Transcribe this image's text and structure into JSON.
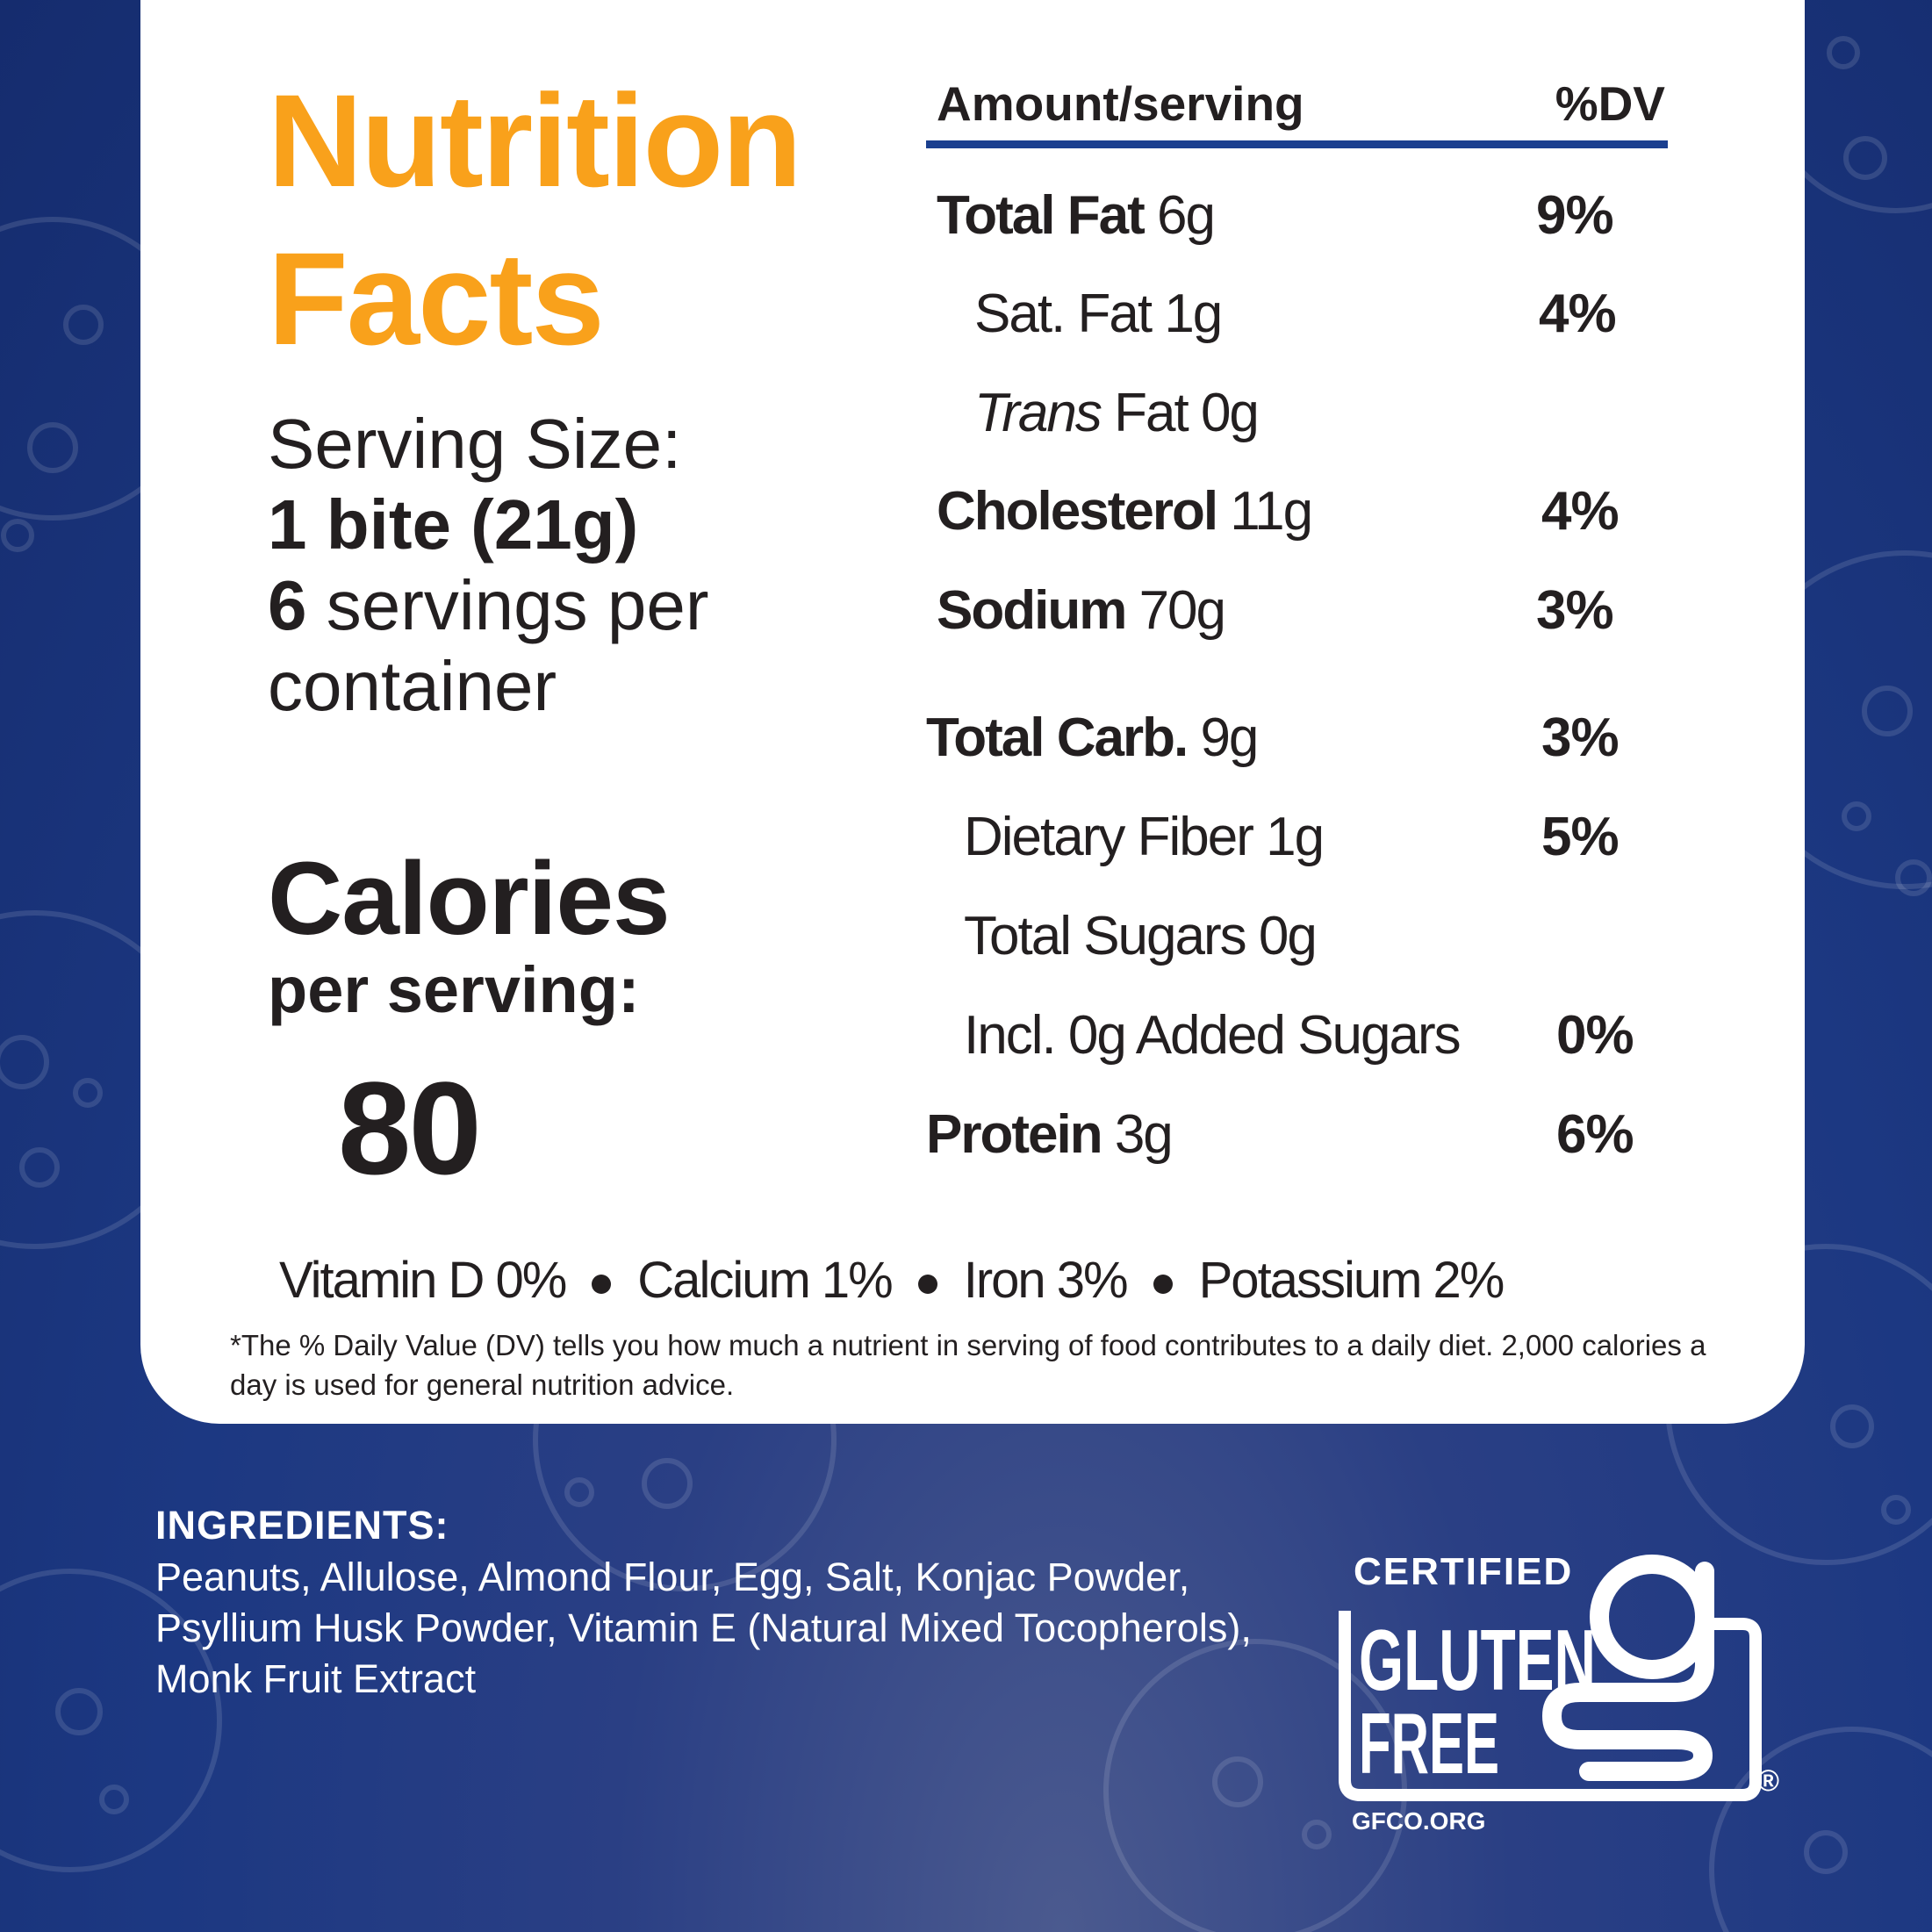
{
  "title": {
    "line1": "Nutrition",
    "line2": "Facts"
  },
  "serving": {
    "label": "Serving Size:",
    "size": "1 bite (21g)",
    "count": "6",
    "count_suffix": " servings per",
    "count_suffix2": "container"
  },
  "calories": {
    "label": "Calories",
    "sublabel": "per serving:",
    "value": "80"
  },
  "table": {
    "header_amount": "Amount/serving",
    "header_dv": "%DV",
    "rows": [
      {
        "name": "Total Fat",
        "amount": "6g",
        "dv": "9%"
      },
      {
        "name": "Sat. Fat",
        "amount": "1g",
        "dv": "4%"
      },
      {
        "name_italic": "Trans",
        "name_rest": " Fat",
        "amount": "0g"
      },
      {
        "name": "Cholesterol",
        "amount": "11g",
        "dv": "4%"
      },
      {
        "name": "Sodium",
        "amount": "70g",
        "dv": "3%"
      },
      {
        "name": "Total Carb.",
        "amount": "9g",
        "dv": "3%"
      },
      {
        "name": "Dietary Fiber",
        "amount": "1g",
        "dv": "5%"
      },
      {
        "name": "Total Sugars",
        "amount": "0g"
      },
      {
        "name": "Incl. 0g Added Sugars",
        "dv": "0%"
      },
      {
        "name": "Protein",
        "amount": "3g",
        "dv": "6%"
      }
    ]
  },
  "vitamins": [
    "Vitamin D 0%",
    "Calcium 1%",
    "Iron 3%",
    "Potassium 2%"
  ],
  "footnote": "*The % Daily Value (DV) tells you how much a nutrient in serving of food contributes to a daily diet. 2,000 calories a day is used for general nutrition advice.",
  "ingredients": {
    "title": "INGREDIENTS:",
    "text": "Peanuts, Allulose, Almond Flour, Egg, Salt, Konjac Powder, Psyllium Husk Powder, Vitamin E (Natural Mixed Tocopherols), Monk Fruit Extract"
  },
  "certification": {
    "line1": "CERTIFIED",
    "line2": "GLUTEN",
    "line3": "FREE",
    "registered": "®",
    "url": "GFCO.ORG"
  },
  "colors": {
    "accent": "#f9a11b",
    "text": "#231f20",
    "rule": "#1b3f8f",
    "background": "#1c3882"
  }
}
